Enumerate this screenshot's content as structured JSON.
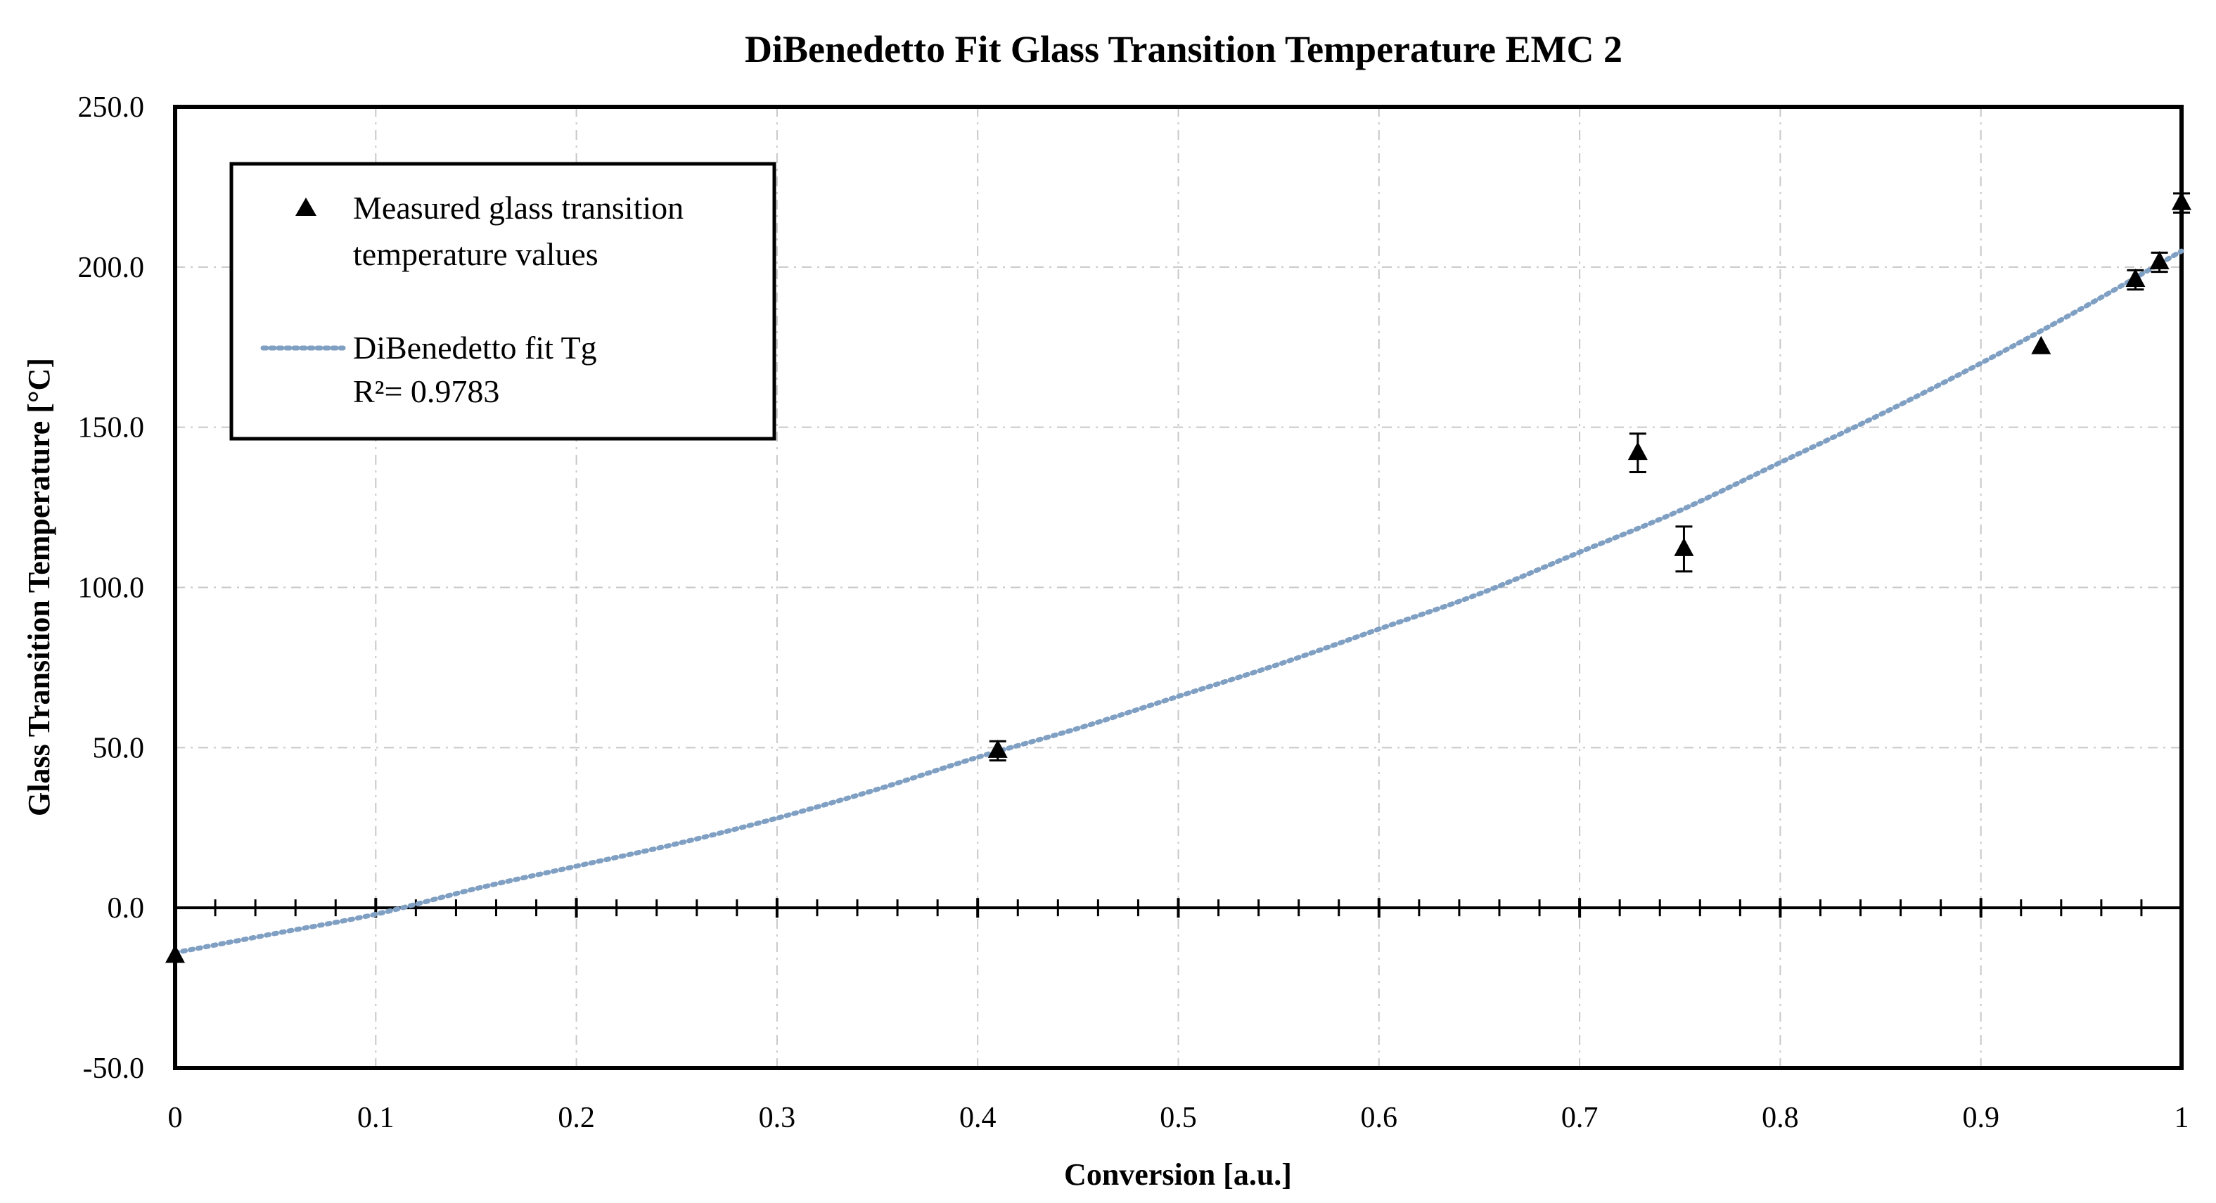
{
  "chart_data": {
    "type": "scatter",
    "title": "DiBenedetto Fit Glass Transition Temperature EMC 2",
    "xlabel": "Conversion [a.u.]",
    "ylabel": "Glass Transition Temperature [°C]",
    "xlim": [
      0,
      1
    ],
    "ylim": [
      -50,
      250
    ],
    "x_ticks": [
      0,
      0.1,
      0.2,
      0.3,
      0.4,
      0.5,
      0.6,
      0.7,
      0.8,
      0.9,
      1
    ],
    "x_tick_labels": [
      "0",
      "0.1",
      "0.2",
      "0.3",
      "0.4",
      "0.5",
      "0.6",
      "0.7",
      "0.8",
      "0.9",
      "1"
    ],
    "y_ticks": [
      -50,
      0,
      50,
      100,
      150,
      200,
      250
    ],
    "y_tick_labels": [
      "-50.0",
      "0.0",
      "50.0",
      "100.0",
      "150.0",
      "200.0",
      "250.0"
    ],
    "grid": true,
    "legend_position": "top-left",
    "series": [
      {
        "name": "Measured glass transition temperature values",
        "legend_lines": [
          "Measured glass transition",
          "temperature values"
        ],
        "kind": "points",
        "marker": "triangle",
        "color": "#000000",
        "points": [
          {
            "x": 0.0,
            "y": -15.0,
            "err": 0
          },
          {
            "x": 0.41,
            "y": 49.0,
            "err": 3
          },
          {
            "x": 0.729,
            "y": 142.0,
            "err": 6
          },
          {
            "x": 0.752,
            "y": 112.0,
            "err": 7
          },
          {
            "x": 0.93,
            "y": 175.0,
            "err": 0
          },
          {
            "x": 0.977,
            "y": 196.0,
            "err": 3
          },
          {
            "x": 0.989,
            "y": 201.5,
            "err": 3
          },
          {
            "x": 1.0,
            "y": 220.0,
            "err": 3
          }
        ]
      },
      {
        "name": "DiBenedetto fit Tg",
        "legend_lines": [
          "DiBenedetto fit Tg",
          "R²= 0.9783"
        ],
        "kind": "fit-line",
        "style": "dotted",
        "color": "#7f9fc3",
        "x": [
          0,
          0.05,
          0.1,
          0.15,
          0.2,
          0.25,
          0.3,
          0.35,
          0.4,
          0.45,
          0.5,
          0.55,
          0.6,
          0.65,
          0.7,
          0.75,
          0.8,
          0.85,
          0.9,
          0.95,
          1.0
        ],
        "y": [
          -14,
          -8,
          -2,
          6,
          13,
          20,
          28,
          37,
          47,
          56,
          66,
          76,
          87,
          98,
          111,
          124,
          139,
          154,
          170,
          187,
          205
        ]
      }
    ]
  }
}
